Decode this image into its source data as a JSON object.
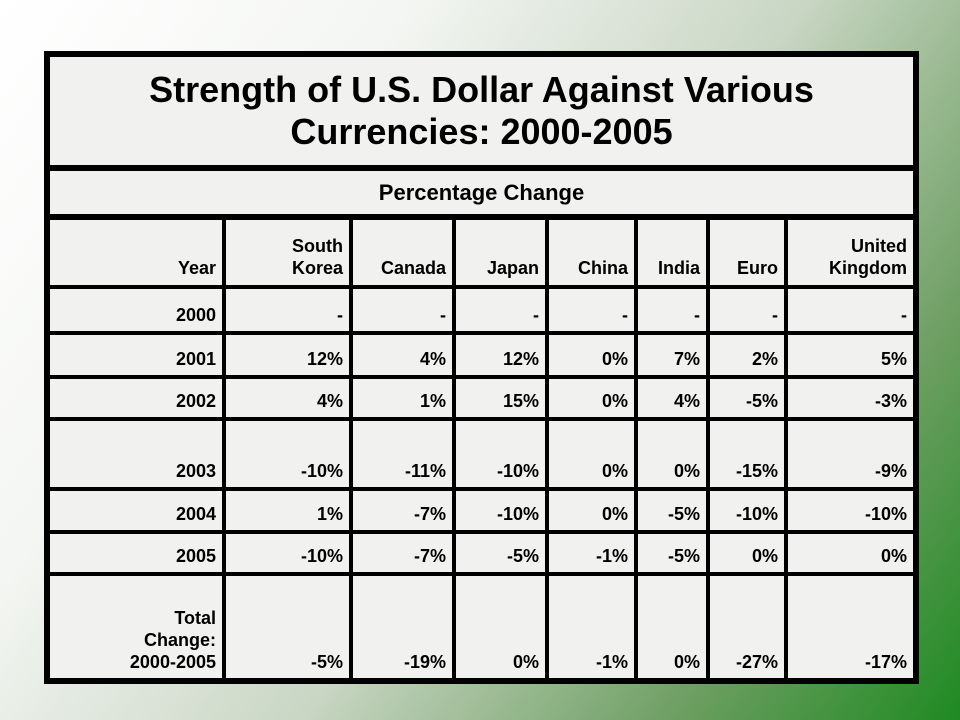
{
  "table": {
    "title": "Strength of U.S. Dollar Against Various Currencies: 2000-2005",
    "subtitle": "Percentage Change",
    "headers": [
      "Year",
      "South\nKorea",
      "Canada",
      "Japan",
      "China",
      "India",
      "Euro",
      "United\nKingdom"
    ],
    "rows": [
      [
        "2000",
        "-",
        "-",
        "-",
        "-",
        "-",
        "-",
        "-"
      ],
      [
        "2001",
        "12%",
        "4%",
        "12%",
        "0%",
        "7%",
        "2%",
        "5%"
      ],
      [
        "2002",
        "4%",
        "1%",
        "15%",
        "0%",
        "4%",
        "-5%",
        "-3%"
      ],
      [
        "2003",
        "-10%",
        "-11%",
        "-10%",
        "0%",
        "0%",
        "-15%",
        "-9%"
      ],
      [
        "2004",
        "1%",
        "-7%",
        "-10%",
        "0%",
        "-5%",
        "-10%",
        "-10%"
      ],
      [
        "2005",
        "-10%",
        "-7%",
        "-5%",
        "-1%",
        "-5%",
        "0%",
        "0%"
      ],
      [
        "Total\nChange:\n2000-2005",
        "-5%",
        "-19%",
        "0%",
        "-1%",
        "0%",
        "-27%",
        "-17%"
      ]
    ]
  },
  "colors": {
    "grid": "#000000",
    "cell": "#f1f2ef",
    "background_green": "#1f8a22"
  }
}
